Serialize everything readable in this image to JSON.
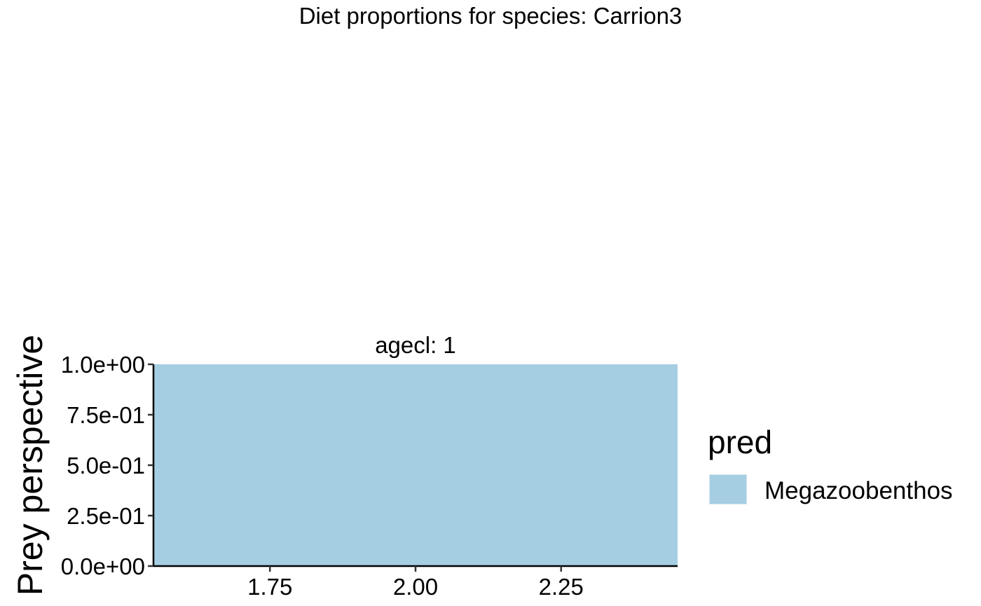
{
  "chart_data": {
    "type": "area",
    "title": "Diet proportions for species: Carrion3",
    "facet_label": "agecl: 1",
    "xlabel": "",
    "ylabel": "Prey perspective",
    "xlim": [
      1.55,
      2.45
    ],
    "ylim": [
      0,
      1
    ],
    "x_ticks": [
      1.75,
      2.0,
      2.25
    ],
    "x_tick_labels": [
      "1.75",
      "2.00",
      "2.25"
    ],
    "y_ticks": [
      0,
      0.25,
      0.5,
      0.75,
      1.0
    ],
    "y_tick_labels": [
      "0.0e+00",
      "2.5e-01",
      "5.0e-01",
      "7.5e-01",
      "1.0e+00"
    ],
    "grid": false,
    "legend": {
      "title": "pred",
      "placement": "right",
      "entries": [
        "Megazoobenthos"
      ]
    },
    "series": [
      {
        "name": "Megazoobenthos",
        "color": "#a6cee3",
        "x": [
          1.55,
          2.45
        ],
        "y": [
          1.0,
          1.0
        ]
      }
    ]
  }
}
